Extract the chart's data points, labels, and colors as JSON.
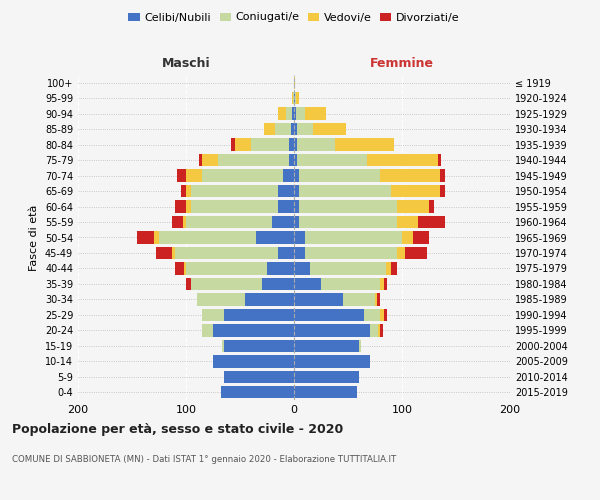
{
  "age_groups_bottom_to_top": [
    "0-4",
    "5-9",
    "10-14",
    "15-19",
    "20-24",
    "25-29",
    "30-34",
    "35-39",
    "40-44",
    "45-49",
    "50-54",
    "55-59",
    "60-64",
    "65-69",
    "70-74",
    "75-79",
    "80-84",
    "85-89",
    "90-94",
    "95-99",
    "100+"
  ],
  "birth_years_bottom_to_top": [
    "2015-2019",
    "2010-2014",
    "2005-2009",
    "2000-2004",
    "1995-1999",
    "1990-1994",
    "1985-1989",
    "1980-1984",
    "1975-1979",
    "1970-1974",
    "1965-1969",
    "1960-1964",
    "1955-1959",
    "1950-1954",
    "1945-1949",
    "1940-1944",
    "1935-1939",
    "1930-1934",
    "1925-1929",
    "1920-1924",
    "≤ 1919"
  ],
  "colors": {
    "celibi": "#4472c4",
    "coniugati": "#c5d9a0",
    "vedovi": "#f5c842",
    "divorziati": "#cc2222"
  },
  "male_celibi": [
    68,
    65,
    75,
    65,
    75,
    65,
    45,
    30,
    25,
    15,
    35,
    20,
    15,
    15,
    10,
    5,
    5,
    3,
    2,
    0,
    0
  ],
  "male_coniugati": [
    0,
    0,
    0,
    2,
    10,
    20,
    45,
    65,
    75,
    95,
    90,
    80,
    80,
    80,
    75,
    65,
    35,
    15,
    5,
    1,
    0
  ],
  "male_vedovi": [
    0,
    0,
    0,
    0,
    0,
    0,
    0,
    0,
    2,
    3,
    5,
    3,
    5,
    5,
    15,
    15,
    15,
    10,
    8,
    1,
    0
  ],
  "male_divorziati": [
    0,
    0,
    0,
    0,
    0,
    0,
    0,
    5,
    8,
    15,
    15,
    10,
    10,
    5,
    8,
    3,
    3,
    0,
    0,
    0,
    0
  ],
  "female_nubili": [
    58,
    60,
    70,
    60,
    70,
    65,
    45,
    25,
    15,
    10,
    10,
    5,
    5,
    5,
    5,
    3,
    3,
    3,
    2,
    1,
    0
  ],
  "female_coniugati": [
    0,
    0,
    0,
    2,
    8,
    15,
    30,
    55,
    70,
    85,
    90,
    90,
    90,
    85,
    75,
    65,
    35,
    15,
    8,
    1,
    0
  ],
  "female_vedovi": [
    0,
    0,
    0,
    0,
    2,
    3,
    2,
    3,
    5,
    8,
    10,
    20,
    30,
    45,
    55,
    65,
    55,
    30,
    20,
    3,
    1
  ],
  "female_divorziati": [
    0,
    0,
    0,
    0,
    2,
    3,
    3,
    3,
    5,
    20,
    15,
    25,
    5,
    5,
    5,
    3,
    0,
    0,
    0,
    0,
    0
  ],
  "title": "Popolazione per età, sesso e stato civile - 2020",
  "subtitle": "COMUNE DI SABBIONETA (MN) - Dati ISTAT 1° gennaio 2020 - Elaborazione TUTTITALIA.IT",
  "ylabel_left": "Fasce di età",
  "label_maschi": "Maschi",
  "label_femmine": "Femmine",
  "xlim": 200,
  "background_color": "#f5f5f5",
  "legend_labels": [
    "Celibi/Nubili",
    "Coniugati/e",
    "Vedovi/e",
    "Divorziati/e"
  ]
}
